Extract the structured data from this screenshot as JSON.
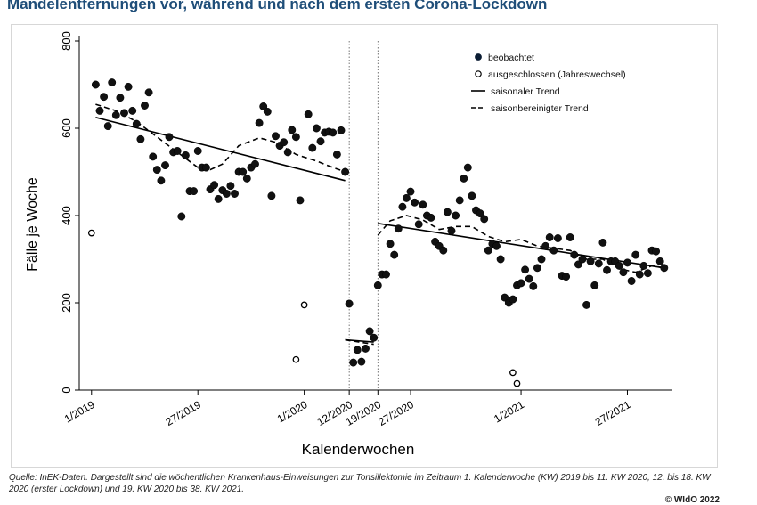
{
  "title": "Mandelentfernungen vor, während und nach dem ersten Corona-Lockdown",
  "footnote": "Quelle: InEK-Daten. Dargestellt sind die wöchentlichen Krankenhaus-Einweisungen zur Tonsillektomie im Zeitraum 1. Kalenderwoche (KW) 2019 bis 11. KW 2020, 12. bis 18. KW 2020 (erster Lockdown) und 19. KW 2020 bis 38. KW 2021.",
  "copyright": "© WIdO 2022",
  "colors": {
    "title": "#1f4e79",
    "points": "#111111"
  },
  "chart_data": {
    "type": "scatter",
    "xlabel": "Kalenderwochen",
    "ylabel": "Fälle je Woche",
    "ylim": [
      0,
      800
    ],
    "yticks": [
      0,
      200,
      400,
      600,
      800
    ],
    "x_index_note": "weeks counted consecutively from KW 1/2019",
    "xlim": [
      -2,
      143
    ],
    "xticks": [
      {
        "x": 1,
        "label": "1/2019"
      },
      {
        "x": 27,
        "label": "27/2019"
      },
      {
        "x": 53,
        "label": "1/2020"
      },
      {
        "x": 64,
        "label": "12/2020"
      },
      {
        "x": 71,
        "label": "19/2020"
      },
      {
        "x": 79,
        "label": "27/2020"
      },
      {
        "x": 106,
        "label": "1/2021"
      },
      {
        "x": 132,
        "label": "27/2021"
      }
    ],
    "vlines": [
      64,
      71
    ],
    "legend": {
      "position": "top-right",
      "entries": [
        "beobachtet",
        "ausgeschlossen (Jahreswechsel)",
        "saisonaler Trend",
        "saisonbereinigter Trend"
      ]
    },
    "series": [
      {
        "name": "beobachtet",
        "style": "filled-circle",
        "points": [
          [
            2,
            700
          ],
          [
            3,
            640
          ],
          [
            4,
            672
          ],
          [
            5,
            605
          ],
          [
            6,
            705
          ],
          [
            7,
            630
          ],
          [
            8,
            670
          ],
          [
            9,
            635
          ],
          [
            10,
            695
          ],
          [
            11,
            640
          ],
          [
            12,
            610
          ],
          [
            13,
            575
          ],
          [
            14,
            652
          ],
          [
            15,
            682
          ],
          [
            16,
            535
          ],
          [
            17,
            505
          ],
          [
            18,
            480
          ],
          [
            19,
            515
          ],
          [
            20,
            580
          ],
          [
            21,
            545
          ],
          [
            22,
            548
          ],
          [
            23,
            398
          ],
          [
            24,
            538
          ],
          [
            25,
            456
          ],
          [
            26,
            456
          ],
          [
            27,
            548
          ],
          [
            28,
            510
          ],
          [
            29,
            510
          ],
          [
            30,
            460
          ],
          [
            31,
            470
          ],
          [
            32,
            438
          ],
          [
            33,
            458
          ],
          [
            34,
            450
          ],
          [
            35,
            468
          ],
          [
            36,
            450
          ],
          [
            37,
            500
          ],
          [
            38,
            500
          ],
          [
            39,
            485
          ],
          [
            40,
            510
          ],
          [
            41,
            518
          ],
          [
            42,
            612
          ],
          [
            43,
            650
          ],
          [
            44,
            638
          ],
          [
            45,
            445
          ],
          [
            46,
            582
          ],
          [
            47,
            560
          ],
          [
            48,
            568
          ],
          [
            49,
            545
          ],
          [
            50,
            596
          ],
          [
            51,
            580
          ],
          [
            52,
            435
          ],
          [
            54,
            632
          ],
          [
            55,
            555
          ],
          [
            56,
            600
          ],
          [
            57,
            570
          ],
          [
            58,
            590
          ],
          [
            59,
            592
          ],
          [
            60,
            590
          ],
          [
            61,
            540
          ],
          [
            62,
            595
          ],
          [
            63,
            500
          ],
          [
            64,
            198
          ],
          [
            65,
            63
          ],
          [
            66,
            92
          ],
          [
            67,
            65
          ],
          [
            68,
            95
          ],
          [
            69,
            135
          ],
          [
            70,
            120
          ],
          [
            71,
            240
          ],
          [
            72,
            265
          ],
          [
            73,
            265
          ],
          [
            74,
            335
          ],
          [
            75,
            310
          ],
          [
            76,
            370
          ],
          [
            77,
            420
          ],
          [
            78,
            440
          ],
          [
            79,
            455
          ],
          [
            80,
            430
          ],
          [
            81,
            380
          ],
          [
            82,
            425
          ],
          [
            83,
            400
          ],
          [
            84,
            395
          ],
          [
            85,
            340
          ],
          [
            86,
            330
          ],
          [
            87,
            320
          ],
          [
            88,
            408
          ],
          [
            89,
            365
          ],
          [
            90,
            400
          ],
          [
            91,
            435
          ],
          [
            92,
            485
          ],
          [
            93,
            510
          ],
          [
            94,
            445
          ],
          [
            95,
            412
          ],
          [
            96,
            405
          ],
          [
            97,
            392
          ],
          [
            98,
            320
          ],
          [
            99,
            335
          ],
          [
            100,
            330
          ],
          [
            101,
            300
          ],
          [
            102,
            212
          ],
          [
            103,
            200
          ],
          [
            104,
            208
          ],
          [
            105,
            240
          ],
          [
            106,
            245
          ],
          [
            107,
            276
          ],
          [
            108,
            255
          ],
          [
            109,
            238
          ],
          [
            110,
            280
          ],
          [
            111,
            300
          ],
          [
            112,
            330
          ],
          [
            113,
            350
          ],
          [
            114,
            320
          ],
          [
            115,
            348
          ],
          [
            116,
            262
          ],
          [
            117,
            260
          ],
          [
            118,
            350
          ],
          [
            119,
            310
          ],
          [
            120,
            288
          ],
          [
            121,
            300
          ],
          [
            122,
            195
          ],
          [
            123,
            295
          ],
          [
            124,
            240
          ],
          [
            125,
            290
          ],
          [
            126,
            338
          ],
          [
            127,
            275
          ],
          [
            128,
            295
          ],
          [
            129,
            295
          ],
          [
            130,
            285
          ],
          [
            131,
            270
          ],
          [
            132,
            292
          ],
          [
            133,
            250
          ],
          [
            134,
            310
          ],
          [
            135,
            265
          ],
          [
            136,
            285
          ],
          [
            137,
            268
          ],
          [
            138,
            320
          ],
          [
            139,
            318
          ],
          [
            140,
            295
          ],
          [
            141,
            280
          ]
        ]
      },
      {
        "name": "ausgeschlossen (Jahreswechsel)",
        "style": "open-circle",
        "points": [
          [
            1,
            360
          ],
          [
            51,
            70
          ],
          [
            53,
            195
          ],
          [
            104,
            40
          ],
          [
            105,
            15
          ]
        ]
      },
      {
        "name": "saisonaler Trend",
        "style": "solid-line",
        "segments": [
          [
            [
              2,
              625
            ],
            [
              63,
              480
            ]
          ],
          [
            [
              63,
              115
            ],
            [
              70,
              110
            ]
          ],
          [
            [
              71,
              382
            ],
            [
              141,
              280
            ]
          ]
        ]
      },
      {
        "name": "saisonbereinigter Trend",
        "style": "dashed-line",
        "segments": [
          [
            [
              2,
              655
            ],
            [
              7,
              640
            ],
            [
              12,
              615
            ],
            [
              17,
              580
            ],
            [
              22,
              545
            ],
            [
              27,
              510
            ],
            [
              30,
              505
            ],
            [
              33,
              518
            ],
            [
              37,
              560
            ],
            [
              42,
              578
            ],
            [
              46,
              568
            ],
            [
              51,
              540
            ],
            [
              56,
              525
            ],
            [
              60,
              510
            ],
            [
              63,
              500
            ]
          ],
          [
            [
              63,
              115
            ],
            [
              70,
              105
            ]
          ],
          [
            [
              71,
              355
            ],
            [
              74,
              388
            ],
            [
              78,
              400
            ],
            [
              82,
              390
            ],
            [
              86,
              368
            ],
            [
              90,
              375
            ],
            [
              94,
              375
            ],
            [
              98,
              352
            ],
            [
              102,
              340
            ],
            [
              106,
              345
            ],
            [
              110,
              330
            ],
            [
              114,
              325
            ],
            [
              118,
              320
            ],
            [
              122,
              300
            ],
            [
              126,
              300
            ],
            [
              130,
              278
            ],
            [
              134,
              270
            ],
            [
              138,
              285
            ],
            [
              141,
              280
            ]
          ]
        ]
      }
    ]
  }
}
